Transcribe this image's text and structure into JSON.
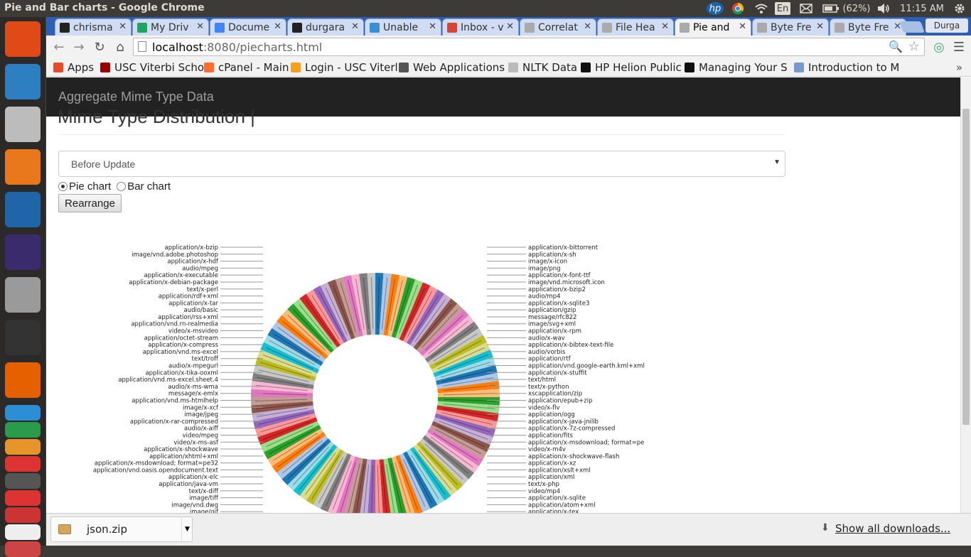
{
  "window_title": "Pie and Bar charts - Google Chrome",
  "tray": {
    "keyboard": "En",
    "battery": "(62%)",
    "clock": "11:15 AM"
  },
  "launcher": [
    {
      "name": "ubuntu-dash-icon",
      "color": "#df4a16"
    },
    {
      "name": "libreoffice-icon",
      "color": "#2d7fc1"
    },
    {
      "name": "file-manager-icon",
      "color": "#bcbcbc"
    },
    {
      "name": "file-manager-2-icon",
      "color": "#e8781b"
    },
    {
      "name": "matlab-icon",
      "color": "#1f65a8"
    },
    {
      "name": "eclipse-icon",
      "color": "#3a2b6d"
    },
    {
      "name": "chrome-icon",
      "color": "#9a9a9a"
    },
    {
      "name": "terminal-icon",
      "color": "#333333"
    },
    {
      "name": "firefox-icon",
      "color": "#e66000"
    }
  ],
  "tabs": [
    {
      "label": "chrisma",
      "color": "#222222"
    },
    {
      "label": "My Driv",
      "color": "#1fa463"
    },
    {
      "label": "Docume",
      "color": "#4285f4"
    },
    {
      "label": "durgara",
      "color": "#222222"
    },
    {
      "label": "Unable",
      "color": "#3a8fd6"
    },
    {
      "label": "Inbox - v",
      "color": "#d44638"
    },
    {
      "label": "Correlat",
      "color": "#aaaaaa"
    },
    {
      "label": "File Hea",
      "color": "#aaaaaa"
    },
    {
      "label": "Pie and",
      "color": "#aaaaaa",
      "active": true
    },
    {
      "label": "Byte Fre",
      "color": "#aaaaaa"
    },
    {
      "label": "Byte Fre",
      "color": "#aaaaaa"
    }
  ],
  "profile": "Durga",
  "url": {
    "host": "localhost",
    "rest": ":8080/piecharts.html"
  },
  "bookmarks": [
    {
      "label": "Apps",
      "color": "#e44d26"
    },
    {
      "label": "USC Viterbi Scho",
      "color": "#990000"
    },
    {
      "label": "cPanel - Main",
      "color": "#ff6c2c"
    },
    {
      "label": "Login - USC Viterl",
      "color": "#f7a11a"
    },
    {
      "label": "Web Applications",
      "color": "#555555"
    },
    {
      "label": "NLTK Data",
      "color": "#bbbbbb"
    },
    {
      "label": "HP Helion Public",
      "color": "#111111"
    },
    {
      "label": "Managing Your S",
      "color": "#111111"
    },
    {
      "label": "Introduction to M",
      "color": "#7799cc"
    }
  ],
  "page": {
    "brand": "Aggregate Mime Type Data",
    "heading": "Mime Type Distribution |",
    "select_value": "Before Update",
    "radio_pie": "Pie chart",
    "radio_bar": "Bar chart",
    "rearrange": "Rearrange"
  },
  "download": {
    "file": "json.zip",
    "show_all": "Show all downloads..."
  },
  "chart_data": {
    "type": "pie",
    "donut": true,
    "labels_left": [
      "application/x-bzip",
      "image/vnd.adobe.photoshop",
      "application/x-hdf",
      "audio/mpeg",
      "application/x-executable",
      "application/x-debian-package",
      "text/x-perl",
      "application/rdf+xml",
      "application/x-tar",
      "audio/basic",
      "application/rss+xml",
      "application/vnd.rn-realmedia",
      "video/x-msvideo",
      "application/octet-stream",
      "application/x-compress",
      "application/vnd.ms-excel",
      "text/troff",
      "audio/x-mpegurl",
      "application/x-tika-ooxml",
      "application/vnd.ms-excel.sheet.4",
      "audio/x-ms-wma",
      "message/x-emlx",
      "application/vnd.ms-htmlhelp",
      "image/x-xcf",
      "image/jpeg",
      "application/x-rar-compressed",
      "audio/x-aiff",
      "video/mpeg",
      "video/x-ms-asf",
      "application/x-shockwave",
      "application/xhtml+xml",
      "application/x-msdownload; format=pe32",
      "application/vnd.oasis.opendocument.text",
      "application/x-elc",
      "application/java-vm",
      "text/x-diff",
      "image/tiff",
      "image/vnd.dwg",
      "image/gif"
    ],
    "labels_right": [
      "application/x-bittorrent",
      "application/x-sh",
      "image/x-icon",
      "image/png",
      "application/x-font-ttf",
      "image/vnd.microsoft.icon",
      "application/x-bzip2",
      "audio/mp4",
      "application/x-sqlite3",
      "application/gzip",
      "message/rfc822",
      "image/svg+xml",
      "application/x-rpm",
      "audio/x-wav",
      "application/x-bibtex-text-file",
      "audio/vorbis",
      "application/rtf",
      "application/vnd.google-earth.kml+xml",
      "application/x-stuffit",
      "text/html",
      "text/x-python",
      "xscapplication/zip",
      "application/epub+zip",
      "video/x-flv",
      "application/ogg",
      "application/x-java-jnilib",
      "application/x-7z-compressed",
      "application/fits",
      "application/x-msdownload; format=pe",
      "video/x-m4v",
      "application/x-shockwave-flash",
      "application/x-xz",
      "application/xslt+xml",
      "application/xml",
      "text/x-php",
      "video/mp4",
      "application/x-sqlite",
      "application/atom+xml",
      "application/x-tex"
    ],
    "palette": [
      "#1f77b4",
      "#aec7e8",
      "#ff7f0e",
      "#ffbb78",
      "#2ca02c",
      "#98df8a",
      "#d62728",
      "#ff9896",
      "#9467bd",
      "#c5b0d5",
      "#8c564b",
      "#c49c94",
      "#e377c2",
      "#f7b6d2",
      "#7f7f7f",
      "#c7c7c7",
      "#bcbd22",
      "#dbdb8d",
      "#17becf",
      "#9edae5"
    ]
  }
}
